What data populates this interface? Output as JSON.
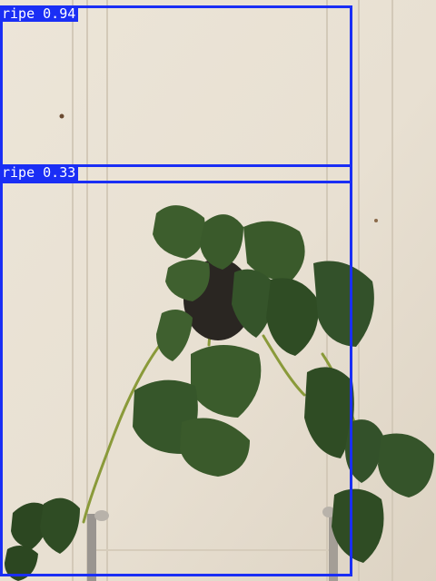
{
  "detections": [
    {
      "label": "ripe",
      "score": "0.94",
      "text": "ripe 0.94"
    },
    {
      "label": "ripe",
      "score": "0.33",
      "text": "ripe 0.33"
    }
  ],
  "colors": {
    "box": "#1a2ef5",
    "wall": "#e9e2d6",
    "leaf": "#3b5a2c",
    "leaf_dark": "#2c4721",
    "stem": "#8a9a3a",
    "pot": "#2a2622"
  }
}
